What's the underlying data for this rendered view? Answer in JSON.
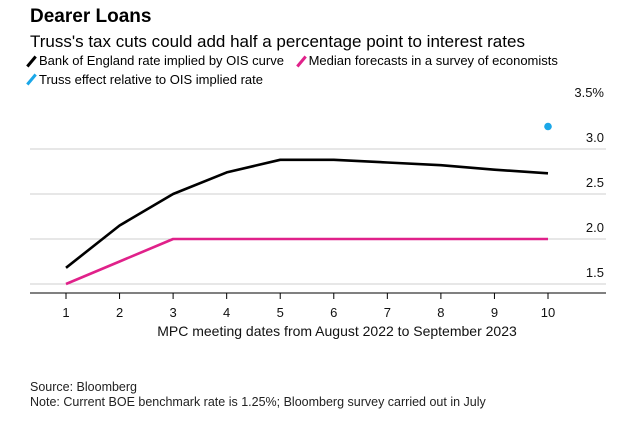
{
  "header": {
    "title": "Dearer Loans",
    "subtitle": "Truss's tax cuts could add half a percentage point to interest rates"
  },
  "legend": [
    {
      "label": "Bank of England rate implied by OIS curve",
      "color": "#000000"
    },
    {
      "label": "Median forecasts in a survey of economists",
      "color": "#e0218a"
    },
    {
      "label": "Truss effect relative to OIS implied rate",
      "color": "#1ba7e8"
    }
  ],
  "footer": {
    "source": "Source: Bloomberg",
    "note": "Note: Current BOE benchmark rate is 1.25%; Bloomberg survey carried out in July"
  },
  "chart_data": {
    "type": "line",
    "x": [
      1,
      2,
      3,
      4,
      5,
      6,
      7,
      8,
      9,
      10
    ],
    "xlabel": "MPC meeting dates from August 2022 to September 2023",
    "ylabel": "",
    "xlim": [
      1,
      10
    ],
    "ylim": [
      1.3,
      3.5
    ],
    "yticks": [
      1.5,
      2.0,
      2.5,
      3.0,
      3.5
    ],
    "ytick_labels": [
      "1.5",
      "2.0",
      "2.5",
      "3.0",
      "3.5%"
    ],
    "grid": true,
    "series": [
      {
        "name": "Bank of England rate implied by OIS curve",
        "color": "#000000",
        "values": [
          1.68,
          2.15,
          2.5,
          2.74,
          2.88,
          2.88,
          2.85,
          2.82,
          2.77,
          2.73
        ]
      },
      {
        "name": "Median forecasts in a survey of economists",
        "color": "#e0218a",
        "values": [
          1.5,
          1.75,
          2.0,
          2.0,
          2.0,
          2.0,
          2.0,
          2.0,
          2.0,
          2.0
        ]
      },
      {
        "name": "Truss effect relative to OIS implied rate",
        "color": "#1ba7e8",
        "points": [
          {
            "x": 10,
            "y": 3.25
          }
        ]
      }
    ]
  }
}
